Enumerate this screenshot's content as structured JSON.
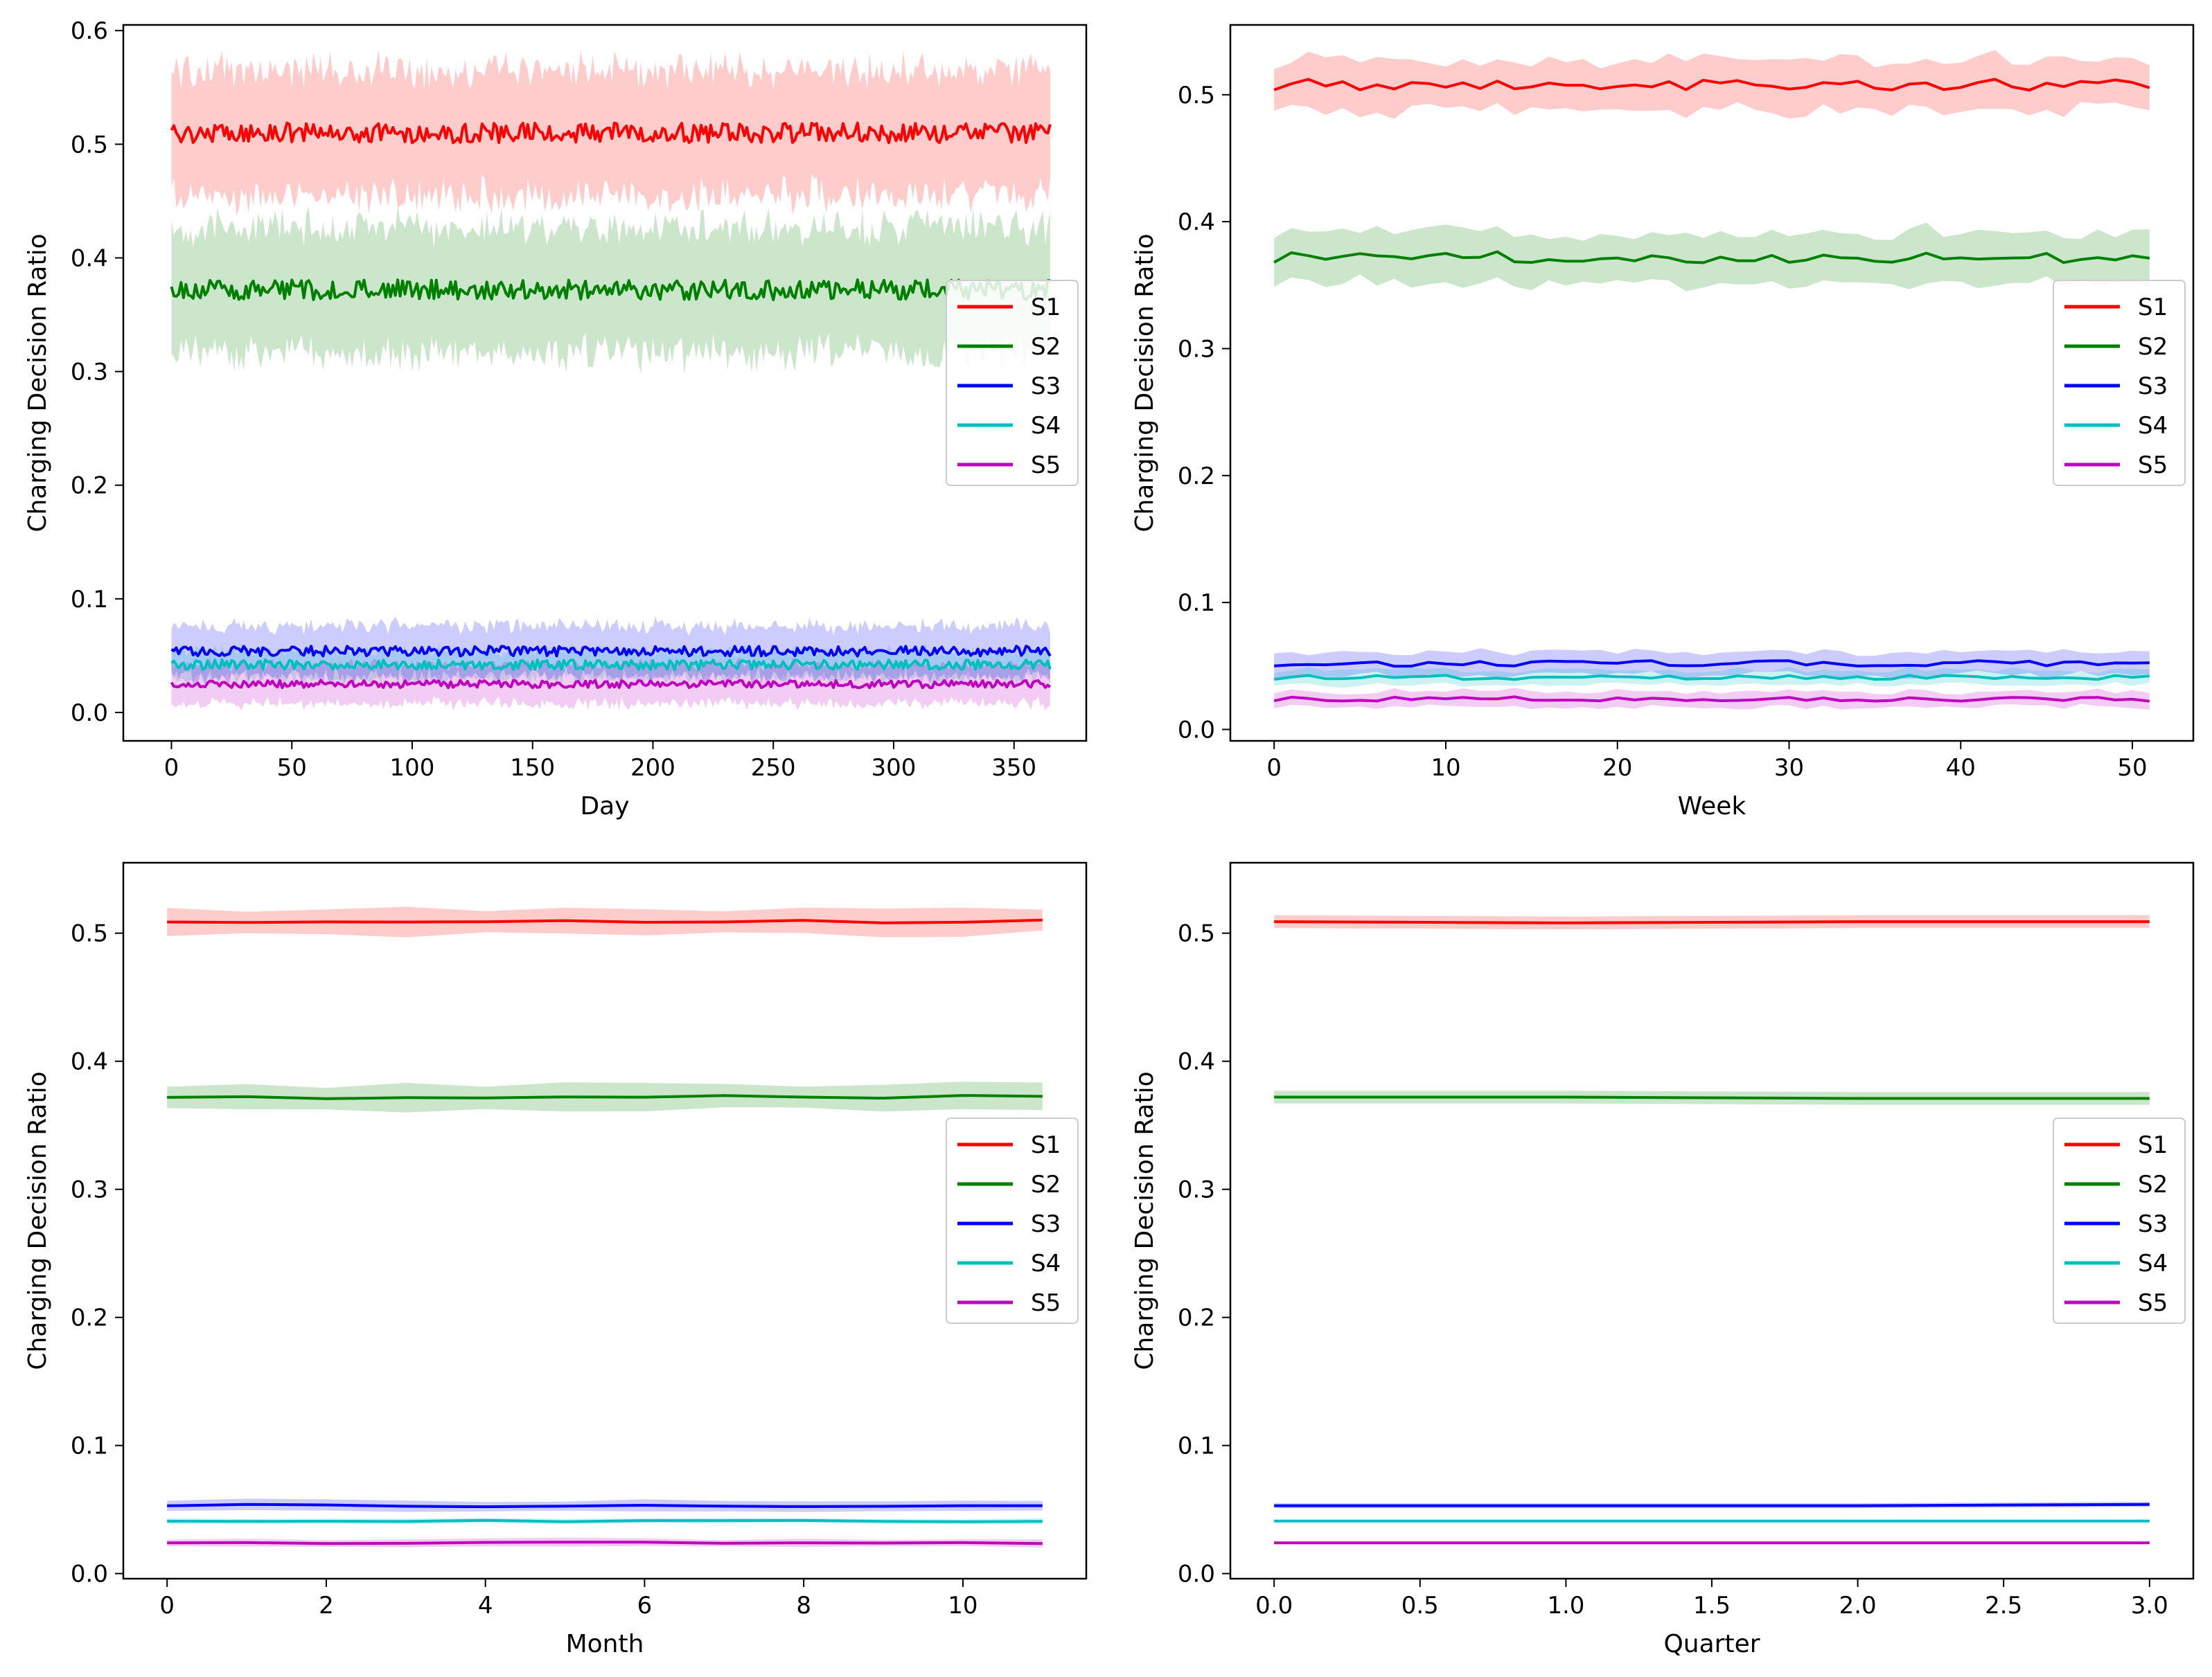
{
  "chart_data": [
    {
      "type": "line",
      "xlabel": "Day",
      "ylabel": "Charging Decision Ratio",
      "xlim": [
        -20,
        380
      ],
      "ylim": [
        -0.025,
        0.605
      ],
      "xticks": [
        0,
        50,
        100,
        150,
        200,
        250,
        300,
        350
      ],
      "xtick_labels": [
        "0",
        "50",
        "100",
        "150",
        "200",
        "250",
        "300",
        "350"
      ],
      "yticks": [
        0.0,
        0.1,
        0.2,
        0.3,
        0.4,
        0.5,
        0.6
      ],
      "ytick_labels": [
        "0.0",
        "0.1",
        "0.2",
        "0.3",
        "0.4",
        "0.5",
        "0.6"
      ],
      "legend_position": "center-right",
      "x_range": [
        0,
        365
      ],
      "n_points": 366,
      "series": [
        {
          "name": "S1",
          "color": "#ff0000",
          "mean": 0.51,
          "band": 0.055,
          "noise": 0.004
        },
        {
          "name": "S2",
          "color": "#008000",
          "mean": 0.372,
          "band": 0.055,
          "noise": 0.004
        },
        {
          "name": "S3",
          "color": "#0000ff",
          "mean": 0.054,
          "band": 0.022,
          "noise": 0.002
        },
        {
          "name": "S4",
          "color": "#00bfbf",
          "mean": 0.042,
          "band": 0.012,
          "noise": 0.002
        },
        {
          "name": "S5",
          "color": "#bf00bf",
          "mean": 0.025,
          "band": 0.017,
          "noise": 0.0015
        }
      ]
    },
    {
      "type": "line",
      "xlabel": "Week",
      "ylabel": "Charging Decision Ratio",
      "xlim": [
        -2.55,
        53.55
      ],
      "ylim": [
        -0.009,
        0.555
      ],
      "xticks": [
        0,
        10,
        20,
        30,
        40,
        50
      ],
      "xtick_labels": [
        "0",
        "10",
        "20",
        "30",
        "40",
        "50"
      ],
      "yticks": [
        0.0,
        0.1,
        0.2,
        0.3,
        0.4,
        0.5
      ],
      "ytick_labels": [
        "0.0",
        "0.1",
        "0.2",
        "0.3",
        "0.4",
        "0.5"
      ],
      "legend_position": "center-right",
      "x_range": [
        0,
        51
      ],
      "n_points": 52,
      "series": [
        {
          "name": "S1",
          "color": "#ff0000",
          "mean": 0.508,
          "band": 0.02,
          "noise": 0.002
        },
        {
          "name": "S2",
          "color": "#008000",
          "mean": 0.372,
          "band": 0.02,
          "noise": 0.002
        },
        {
          "name": "S3",
          "color": "#0000ff",
          "mean": 0.052,
          "band": 0.009,
          "noise": 0.001
        },
        {
          "name": "S4",
          "color": "#00bfbf",
          "mean": 0.041,
          "band": 0.006,
          "noise": 0.0008
        },
        {
          "name": "S5",
          "color": "#bf00bf",
          "mean": 0.024,
          "band": 0.006,
          "noise": 0.0008
        }
      ]
    },
    {
      "type": "line",
      "xlabel": "Month",
      "ylabel": "Charging Decision Ratio",
      "xlim": [
        -0.55,
        11.55
      ],
      "ylim": [
        -0.004,
        0.555
      ],
      "xticks": [
        0,
        2,
        4,
        6,
        8,
        10
      ],
      "xtick_labels": [
        "0",
        "2",
        "4",
        "6",
        "8",
        "10"
      ],
      "yticks": [
        0.0,
        0.1,
        0.2,
        0.3,
        0.4,
        0.5
      ],
      "ytick_labels": [
        "0.0",
        "0.1",
        "0.2",
        "0.3",
        "0.4",
        "0.5"
      ],
      "legend_position": "center-right",
      "x_range": [
        0,
        11
      ],
      "n_points": 12,
      "series": [
        {
          "name": "S1",
          "color": "#ff0000",
          "mean": 0.509,
          "band": 0.01,
          "noise": 0.0007
        },
        {
          "name": "S2",
          "color": "#008000",
          "mean": 0.372,
          "band": 0.01,
          "noise": 0.0007
        },
        {
          "name": "S3",
          "color": "#0000ff",
          "mean": 0.053,
          "band": 0.004,
          "noise": 0.0005
        },
        {
          "name": "S4",
          "color": "#00bfbf",
          "mean": 0.041,
          "band": 0.002,
          "noise": 0.0003
        },
        {
          "name": "S5",
          "color": "#bf00bf",
          "mean": 0.024,
          "band": 0.003,
          "noise": 0.0003
        }
      ]
    },
    {
      "type": "line",
      "xlabel": "Quarter",
      "ylabel": "Charging Decision Ratio",
      "xlim": [
        -0.15,
        3.15
      ],
      "ylim": [
        -0.004,
        0.555
      ],
      "xticks": [
        0.0,
        0.5,
        1.0,
        1.5,
        2.0,
        2.5,
        3.0
      ],
      "xtick_labels": [
        "0.0",
        "0.5",
        "1.0",
        "1.5",
        "2.0",
        "2.5",
        "3.0"
      ],
      "yticks": [
        0.0,
        0.1,
        0.2,
        0.3,
        0.4,
        0.5
      ],
      "ytick_labels": [
        "0.0",
        "0.1",
        "0.2",
        "0.3",
        "0.4",
        "0.5"
      ],
      "legend_position": "center-right",
      "x": [
        0,
        1,
        2,
        3
      ],
      "series": [
        {
          "name": "S1",
          "color": "#ff0000",
          "values": [
            0.509,
            0.508,
            0.509,
            0.509
          ],
          "band": 0.005
        },
        {
          "name": "S2",
          "color": "#008000",
          "values": [
            0.372,
            0.372,
            0.371,
            0.371
          ],
          "band": 0.005
        },
        {
          "name": "S3",
          "color": "#0000ff",
          "values": [
            0.053,
            0.053,
            0.053,
            0.054
          ],
          "band": 0.002
        },
        {
          "name": "S4",
          "color": "#00bfbf",
          "values": [
            0.041,
            0.041,
            0.041,
            0.041
          ],
          "band": 0.001
        },
        {
          "name": "S5",
          "color": "#bf00bf",
          "values": [
            0.024,
            0.024,
            0.024,
            0.024
          ],
          "band": 0.001
        }
      ]
    }
  ]
}
